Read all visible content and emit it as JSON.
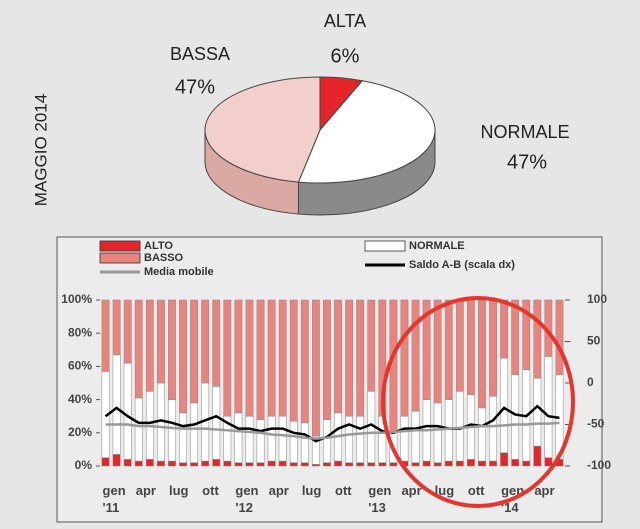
{
  "chart_data": [
    {
      "type": "pie",
      "title": "MAGGIO 2014",
      "categories": [
        "ALTA",
        "NORMALE",
        "BASSA"
      ],
      "values": [
        6,
        47,
        47
      ],
      "value_labels": [
        "6%",
        "47%",
        "47%"
      ],
      "colors": [
        "#e4262a",
        "#ffffff",
        "#f2cfcb"
      ],
      "side_colors": [
        "#b51c20",
        "#8a8a8a",
        "#dba9a4"
      ]
    },
    {
      "type": "bar",
      "stacked": true,
      "categories": [
        "gen '11",
        null,
        null,
        "apr",
        null,
        null,
        "lug",
        null,
        null,
        "ott",
        null,
        null,
        "gen '12",
        null,
        null,
        "apr",
        null,
        null,
        "lug",
        null,
        null,
        "ott",
        null,
        null,
        "gen '13",
        null,
        null,
        "apr",
        null,
        null,
        "lug",
        null,
        null,
        "ott",
        null,
        null,
        "gen '14",
        null,
        null,
        "apr",
        null,
        null
      ],
      "series": [
        {
          "name": "ALTO",
          "color": "#e4262a",
          "values": [
            5,
            7,
            4,
            3,
            4,
            3,
            3,
            2,
            2,
            3,
            4,
            3,
            2,
            2,
            2,
            3,
            3,
            2,
            2,
            1,
            2,
            3,
            2,
            2,
            2,
            2,
            2,
            3,
            2,
            3,
            2,
            3,
            3,
            4,
            3,
            3,
            8,
            4,
            3,
            12,
            5,
            4
          ]
        },
        {
          "name": "NORMALE",
          "color": "#ffffff",
          "values": [
            52,
            60,
            58,
            38,
            41,
            47,
            37,
            30,
            36,
            47,
            44,
            27,
            30,
            28,
            26,
            27,
            27,
            25,
            24,
            17,
            26,
            29,
            28,
            28,
            43,
            28,
            18,
            27,
            31,
            37,
            36,
            37,
            42,
            39,
            32,
            39,
            57,
            51,
            55,
            41,
            61,
            51
          ]
        },
        {
          "name": "BASSO",
          "color": "#e8837e",
          "values": [
            43,
            33,
            38,
            59,
            55,
            50,
            60,
            68,
            62,
            50,
            52,
            70,
            68,
            70,
            72,
            70,
            70,
            73,
            74,
            82,
            72,
            68,
            70,
            70,
            55,
            70,
            80,
            70,
            67,
            60,
            62,
            60,
            55,
            57,
            65,
            58,
            35,
            45,
            42,
            47,
            34,
            45
          ]
        },
        {
          "name": "Saldo A-B (scala dx)",
          "type": "line",
          "axis": "y2",
          "color": "#000000",
          "values": [
            -40,
            -30,
            -40,
            -48,
            -48,
            -45,
            -48,
            -52,
            -50,
            -45,
            -40,
            -48,
            -55,
            -55,
            -58,
            -55,
            -55,
            -60,
            -62,
            -70,
            -65,
            -55,
            -50,
            -55,
            -50,
            -58,
            -60,
            -55,
            -55,
            -52,
            -52,
            -55,
            -55,
            -50,
            -52,
            -45,
            -30,
            -38,
            -40,
            -28,
            -40,
            -42
          ]
        },
        {
          "name": "Media mobile",
          "type": "line",
          "axis": "y2",
          "color": "#999999",
          "values": [
            -50,
            -50,
            -50,
            -52,
            -52,
            -53,
            -54,
            -55,
            -55,
            -55,
            -56,
            -57,
            -58,
            -59,
            -60,
            -62,
            -63,
            -64,
            -66,
            -67,
            -66,
            -64,
            -62,
            -61,
            -60,
            -60,
            -59,
            -58,
            -57,
            -57,
            -56,
            -55,
            -54,
            -53,
            -52,
            -52,
            -51,
            -50,
            -50,
            -49,
            -49,
            -48
          ]
        }
      ],
      "ylim": [
        0,
        100
      ],
      "yticks": [
        {
          "value": 0,
          "label": "0%"
        },
        {
          "value": 20,
          "label": "20%"
        },
        {
          "value": 40,
          "label": "40%"
        },
        {
          "value": 60,
          "label": "60%"
        },
        {
          "value": 80,
          "label": "80%"
        },
        {
          "value": 100,
          "label": "100%"
        }
      ],
      "y2lim": [
        -100,
        100
      ],
      "y2ticks": [
        -100,
        -50,
        0,
        50,
        100
      ]
    }
  ]
}
